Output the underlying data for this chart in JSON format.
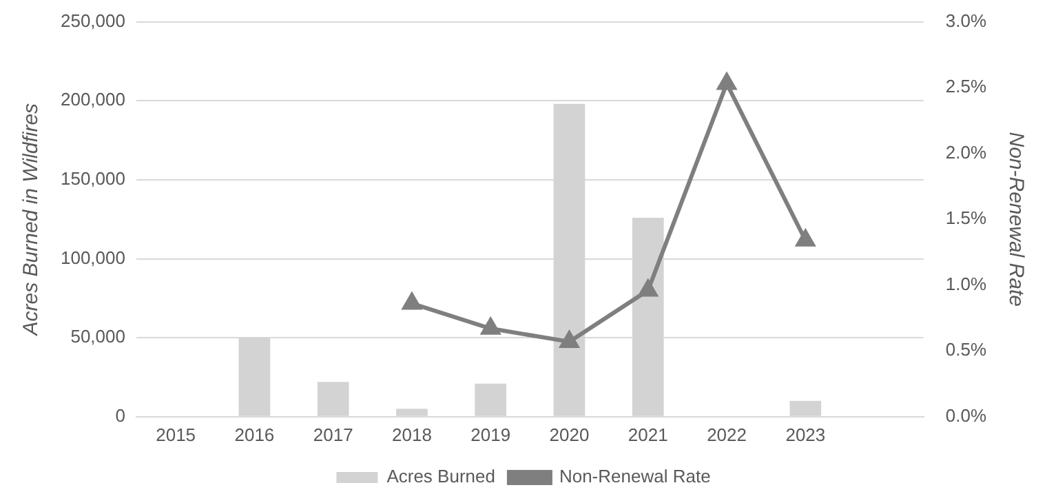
{
  "chart_data": {
    "type": "bar",
    "xlabel": null,
    "ylabel": "Acres Burned in Wildfires",
    "y2label": "Non-Renewal Rate",
    "categories": [
      "2015",
      "2016",
      "2017",
      "2018",
      "2019",
      "2020",
      "2021",
      "2022",
      "2023",
      null
    ],
    "series": [
      {
        "name": "Acres Burned",
        "color": "#d3d3d3",
        "values": [
          null,
          50000,
          22000,
          5000,
          21000,
          198000,
          126000,
          null,
          10000,
          null
        ]
      },
      {
        "name": "Non-Renewal Rate",
        "type": "line",
        "axis": "y2",
        "color": "#7f7f7f",
        "marker": "triangle",
        "values": [
          null,
          null,
          null,
          0.86,
          0.67,
          0.57,
          0.96,
          2.53,
          1.34,
          null
        ]
      }
    ],
    "ylim": [
      0,
      250000
    ],
    "yticks": [
      {
        "value": 0,
        "label": "0"
      },
      {
        "value": 50000,
        "label": "50,000"
      },
      {
        "value": 100000,
        "label": "100,000"
      },
      {
        "value": 150000,
        "label": "150,000"
      },
      {
        "value": 200000,
        "label": "200,000"
      },
      {
        "value": 250000,
        "label": "250,000"
      }
    ],
    "y2lim": [
      0,
      3
    ],
    "y2ticks": [
      {
        "value": 0,
        "label": "0.0%"
      },
      {
        "value": 0.5,
        "label": "0.5%"
      },
      {
        "value": 1,
        "label": "1.0%"
      },
      {
        "value": 1.5,
        "label": "1.5%"
      },
      {
        "value": 2,
        "label": "2.0%"
      },
      {
        "value": 2.5,
        "label": "2.5%"
      },
      {
        "value": 3,
        "label": "3.0%"
      }
    ],
    "grid": "y",
    "legend": "bottom"
  }
}
